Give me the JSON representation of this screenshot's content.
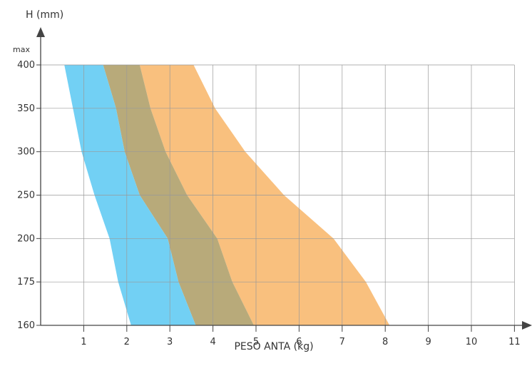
{
  "chart_data": {
    "type": "area",
    "xlabel": "PESO ANTA (kg)",
    "ylabel": "H (mm)",
    "y_top_label": "max",
    "x_ticks": [
      "1",
      "2",
      "3",
      "4",
      "5",
      "6",
      "7",
      "8",
      "9",
      "10",
      "11"
    ],
    "xlim": [
      0,
      11
    ],
    "y_ticks": [
      "160",
      "175",
      "200",
      "250",
      "300",
      "350",
      "400"
    ],
    "grid": true,
    "colors": {
      "grid": "#999999",
      "axis": "#444444"
    },
    "series": [
      {
        "color": "#f9c07e",
        "left": [
          [
            2.3,
            "400"
          ],
          [
            2.55,
            "350"
          ],
          [
            2.9,
            "300"
          ],
          [
            3.4,
            "250"
          ],
          [
            4.1,
            "200"
          ],
          [
            4.45,
            "175"
          ],
          [
            4.95,
            "160"
          ]
        ],
        "right": [
          [
            3.55,
            "400"
          ],
          [
            4.05,
            "350"
          ],
          [
            4.75,
            "300"
          ],
          [
            5.65,
            "250"
          ],
          [
            6.8,
            "200"
          ],
          [
            7.55,
            "175"
          ],
          [
            8.1,
            "160"
          ]
        ]
      },
      {
        "color": "#b8aa7a",
        "left": [
          [
            1.45,
            "400"
          ],
          [
            1.75,
            "350"
          ],
          [
            1.95,
            "300"
          ],
          [
            2.3,
            "250"
          ],
          [
            2.95,
            "200"
          ],
          [
            3.2,
            "175"
          ],
          [
            3.6,
            "160"
          ]
        ],
        "right": [
          [
            2.3,
            "400"
          ],
          [
            2.55,
            "350"
          ],
          [
            2.9,
            "300"
          ],
          [
            3.4,
            "250"
          ],
          [
            4.1,
            "200"
          ],
          [
            4.45,
            "175"
          ],
          [
            4.95,
            "160"
          ]
        ]
      },
      {
        "color": "#72d0f4",
        "left": [
          [
            0.55,
            "400"
          ],
          [
            0.75,
            "350"
          ],
          [
            0.95,
            "300"
          ],
          [
            1.25,
            "250"
          ],
          [
            1.6,
            "200"
          ],
          [
            1.8,
            "175"
          ],
          [
            2.1,
            "160"
          ]
        ],
        "right": [
          [
            1.45,
            "400"
          ],
          [
            1.75,
            "350"
          ],
          [
            1.95,
            "300"
          ],
          [
            2.3,
            "250"
          ],
          [
            2.95,
            "200"
          ],
          [
            3.2,
            "175"
          ],
          [
            3.6,
            "160"
          ]
        ]
      }
    ]
  }
}
